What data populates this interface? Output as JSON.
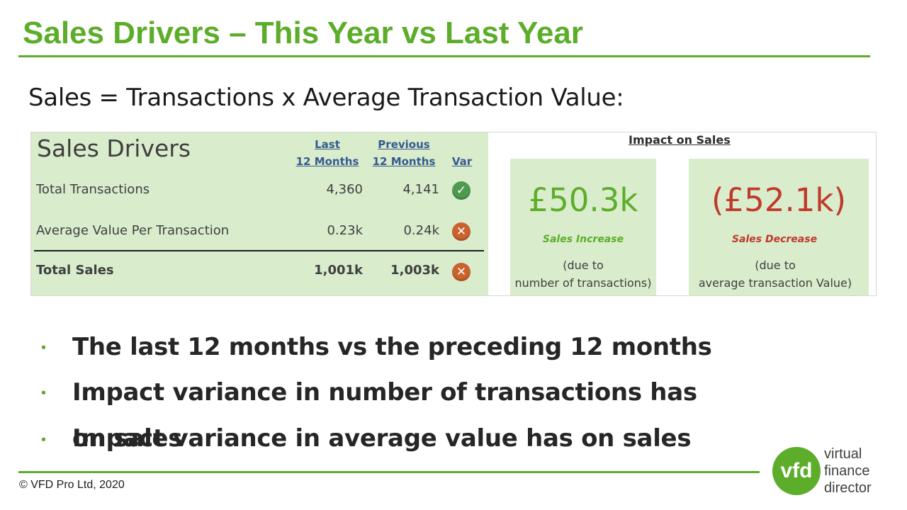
{
  "header": {
    "title": "Sales Drivers – This Year vs Last Year",
    "formula": "Sales = Transactions x Average Transaction Value:"
  },
  "drivers": {
    "title": "Sales Drivers",
    "columns": {
      "last": [
        "Last",
        "12 Months"
      ],
      "previous": [
        "Previous",
        "12 Months"
      ],
      "var": "Var"
    },
    "rows": [
      {
        "label": "Total Transactions",
        "last": "4,360",
        "previous": "4,141",
        "var_icon": "check-icon"
      },
      {
        "label": "Average Value Per Transaction",
        "last": "0.23k",
        "previous": "0.24k",
        "var_icon": "cross-icon"
      },
      {
        "label": "Total Sales",
        "last": "1,001k",
        "previous": "1,003k",
        "var_icon": "cross-icon"
      }
    ]
  },
  "impact": {
    "title": "Impact on Sales",
    "increase": {
      "value": "£50.3k",
      "label": "Sales Increase",
      "desc": [
        "(due to",
        "number of transactions)"
      ],
      "color": "#5cad29"
    },
    "decrease": {
      "value": "(£52.1k)",
      "label": "Sales Decrease",
      "desc": [
        "(due to",
        "average transaction Value)"
      ],
      "color": "#c0392b"
    }
  },
  "bullets": [
    "The last 12 months vs the preceding 12 months",
    "Impact variance in number of transactions has",
    "on sales",
    "Impact variance in average value has on sales"
  ],
  "footer": {
    "copyright": "© VFD Pro Ltd, 2020",
    "logo_mark": "vfd",
    "logo_lines": [
      "virtual",
      "finance",
      "director"
    ]
  },
  "colors": {
    "accent": "#5cad29",
    "panel_bg": "#d9eccc",
    "header_blue": "#365a8f"
  }
}
